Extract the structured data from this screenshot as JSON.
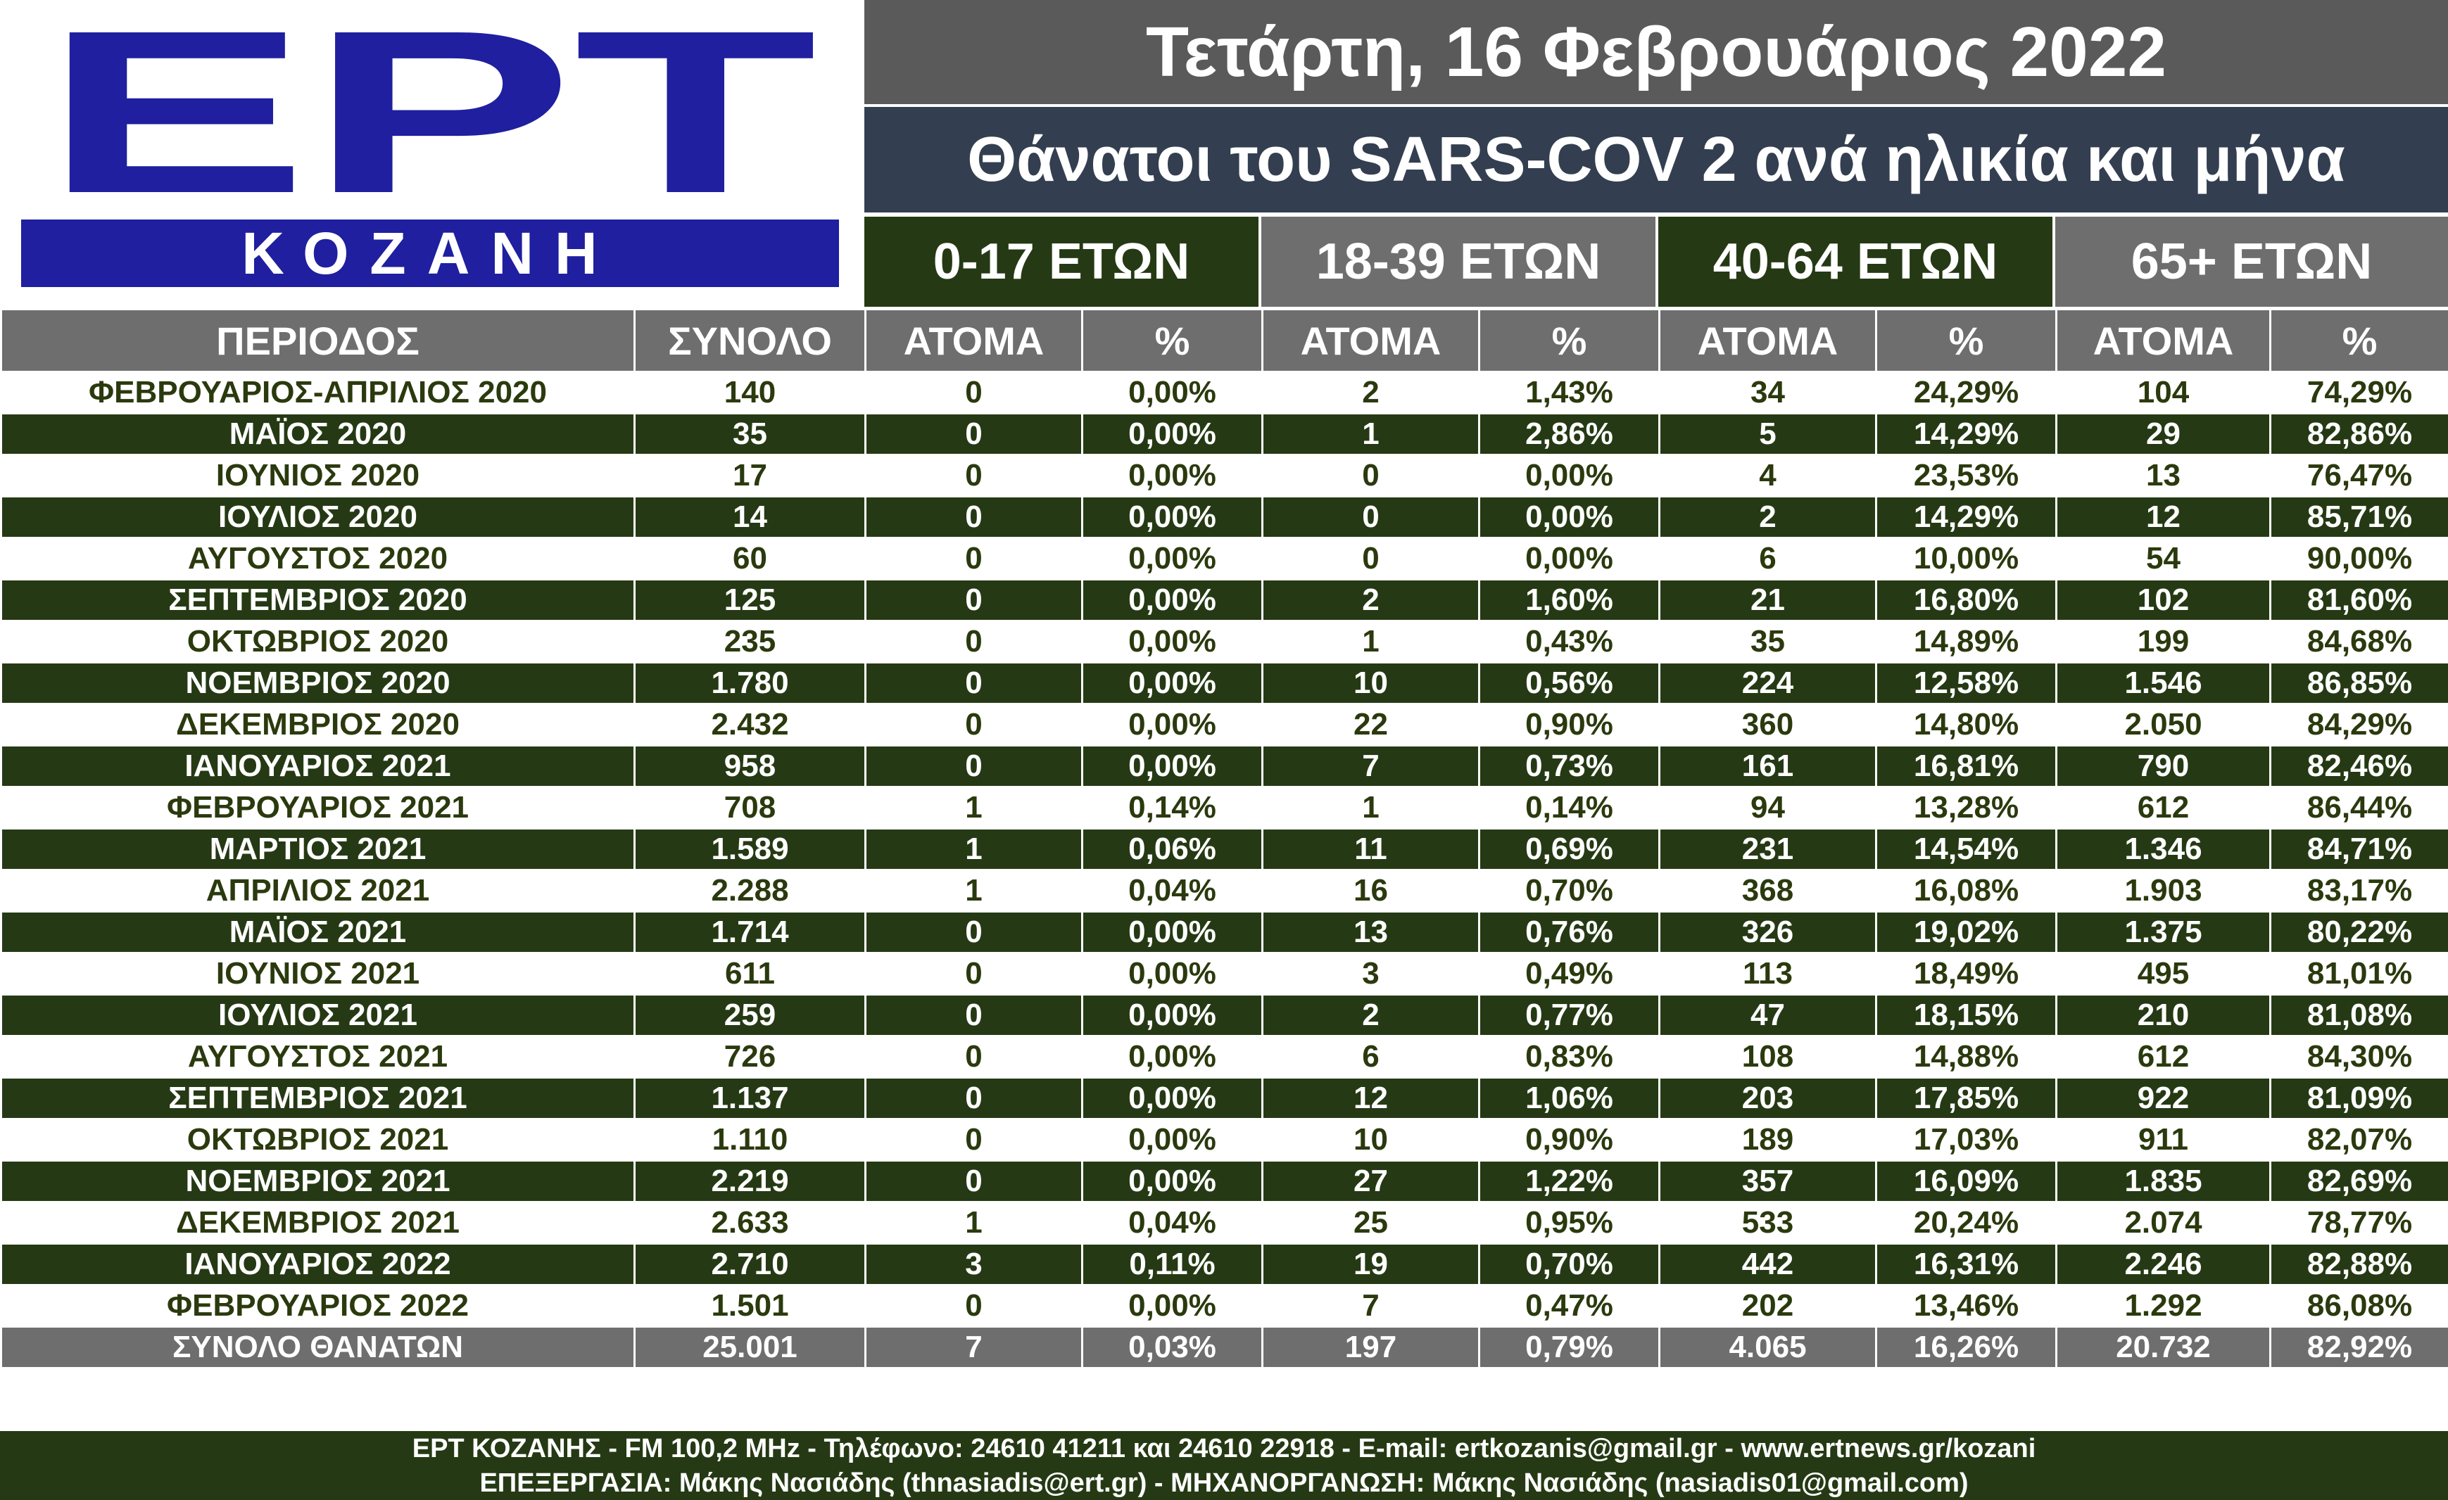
{
  "logo": {
    "letters": "ΕΡΤ",
    "city": "ΚΟΖΑΝΗ"
  },
  "header": {
    "date": "Τετάρτη, 16 Φεβρουάριος 2022",
    "title": "Θάνατοι του SARS-COV 2 ανά ηλικία και μήνα"
  },
  "age_groups": [
    "0-17 ΕΤΩΝ",
    "18-39 ΕΤΩΝ",
    "40-64 ΕΤΩΝ",
    "65+  ΕΤΩΝ"
  ],
  "columns": [
    "ΠΕΡΙΟΔΟΣ",
    "ΣΥΝΟΛΟ",
    "ΑΤΟΜΑ",
    "%",
    "ΑΤΟΜΑ",
    "%",
    "ΑΤΟΜΑ",
    "%",
    "ΑΤΟΜΑ",
    "%"
  ],
  "rows": [
    [
      "ΦΕΒΡΟΥΑΡΙΟΣ-ΑΠΡΙΛΙΟΣ 2020",
      "140",
      "0",
      "0,00%",
      "2",
      "1,43%",
      "34",
      "24,29%",
      "104",
      "74,29%"
    ],
    [
      "ΜΑΪΟΣ 2020",
      "35",
      "0",
      "0,00%",
      "1",
      "2,86%",
      "5",
      "14,29%",
      "29",
      "82,86%"
    ],
    [
      "ΙΟΥΝΙΟΣ 2020",
      "17",
      "0",
      "0,00%",
      "0",
      "0,00%",
      "4",
      "23,53%",
      "13",
      "76,47%"
    ],
    [
      "ΙΟΥΛΙΟΣ 2020",
      "14",
      "0",
      "0,00%",
      "0",
      "0,00%",
      "2",
      "14,29%",
      "12",
      "85,71%"
    ],
    [
      "ΑΥΓΟΥΣΤΟΣ 2020",
      "60",
      "0",
      "0,00%",
      "0",
      "0,00%",
      "6",
      "10,00%",
      "54",
      "90,00%"
    ],
    [
      "ΣΕΠΤΕΜΒΡΙΟΣ 2020",
      "125",
      "0",
      "0,00%",
      "2",
      "1,60%",
      "21",
      "16,80%",
      "102",
      "81,60%"
    ],
    [
      "ΟΚΤΩΒΡΙΟΣ 2020",
      "235",
      "0",
      "0,00%",
      "1",
      "0,43%",
      "35",
      "14,89%",
      "199",
      "84,68%"
    ],
    [
      "ΝΟΕΜΒΡΙΟΣ 2020",
      "1.780",
      "0",
      "0,00%",
      "10",
      "0,56%",
      "224",
      "12,58%",
      "1.546",
      "86,85%"
    ],
    [
      "ΔΕΚΕΜΒΡΙΟΣ 2020",
      "2.432",
      "0",
      "0,00%",
      "22",
      "0,90%",
      "360",
      "14,80%",
      "2.050",
      "84,29%"
    ],
    [
      "ΙΑΝΟΥΑΡΙΟΣ 2021",
      "958",
      "0",
      "0,00%",
      "7",
      "0,73%",
      "161",
      "16,81%",
      "790",
      "82,46%"
    ],
    [
      "ΦΕΒΡΟΥΑΡΙΟΣ 2021",
      "708",
      "1",
      "0,14%",
      "1",
      "0,14%",
      "94",
      "13,28%",
      "612",
      "86,44%"
    ],
    [
      "ΜΑΡΤΙΟΣ 2021",
      "1.589",
      "1",
      "0,06%",
      "11",
      "0,69%",
      "231",
      "14,54%",
      "1.346",
      "84,71%"
    ],
    [
      "ΑΠΡΙΛΙΟΣ 2021",
      "2.288",
      "1",
      "0,04%",
      "16",
      "0,70%",
      "368",
      "16,08%",
      "1.903",
      "83,17%"
    ],
    [
      "ΜΑΪΟΣ 2021",
      "1.714",
      "0",
      "0,00%",
      "13",
      "0,76%",
      "326",
      "19,02%",
      "1.375",
      "80,22%"
    ],
    [
      "ΙΟΥΝΙΟΣ 2021",
      "611",
      "0",
      "0,00%",
      "3",
      "0,49%",
      "113",
      "18,49%",
      "495",
      "81,01%"
    ],
    [
      "ΙΟΥΛΙΟΣ 2021",
      "259",
      "0",
      "0,00%",
      "2",
      "0,77%",
      "47",
      "18,15%",
      "210",
      "81,08%"
    ],
    [
      "ΑΥΓΟΥΣΤΟΣ 2021",
      "726",
      "0",
      "0,00%",
      "6",
      "0,83%",
      "108",
      "14,88%",
      "612",
      "84,30%"
    ],
    [
      "ΣΕΠΤΕΜΒΡΙΟΣ 2021",
      "1.137",
      "0",
      "0,00%",
      "12",
      "1,06%",
      "203",
      "17,85%",
      "922",
      "81,09%"
    ],
    [
      "ΟΚΤΩΒΡΙΟΣ 2021",
      "1.110",
      "0",
      "0,00%",
      "10",
      "0,90%",
      "189",
      "17,03%",
      "911",
      "82,07%"
    ],
    [
      "ΝΟΕΜΒΡΙΟΣ 2021",
      "2.219",
      "0",
      "0,00%",
      "27",
      "1,22%",
      "357",
      "16,09%",
      "1.835",
      "82,69%"
    ],
    [
      "ΔΕΚΕΜΒΡΙΟΣ 2021",
      "2.633",
      "1",
      "0,04%",
      "25",
      "0,95%",
      "533",
      "20,24%",
      "2.074",
      "78,77%"
    ],
    [
      "ΙΑΝΟΥΑΡΙΟΣ 2022",
      "2.710",
      "3",
      "0,11%",
      "19",
      "0,70%",
      "442",
      "16,31%",
      "2.246",
      "82,88%"
    ],
    [
      "ΦΕΒΡΟΥΑΡΙΟΣ 2022",
      "1.501",
      "0",
      "0,00%",
      "7",
      "0,47%",
      "202",
      "13,46%",
      "1.292",
      "86,08%"
    ]
  ],
  "total": [
    "ΣΥΝΟΛΟ ΘΑΝΑΤΩΝ",
    "25.001",
    "7",
    "0,03%",
    "197",
    "0,79%",
    "4.065",
    "16,26%",
    "20.732",
    "82,92%"
  ],
  "footer": {
    "line1": "ΕΡΤ ΚΟΖΑΝΗΣ - FM 100,2 MHz - Τηλέφωνο:  24610 41211 και 24610 22918 - E-mail: ertkozanis@gmail.gr - www.ertnews.gr/kozani",
    "line2": "ΕΠΕΞΕΡΓΑΣΙΑ: Μάκης Νασιάδης (thnasiadis@ert.gr) - ΜΗΧΑΝΟΡΓΑΝΩΣΗ: Μάκης Νασιάδης (nasiadis01@gmail.com)"
  },
  "colors": {
    "logo_blue": "#1f1fa0",
    "date_bar": "#5a5a5a",
    "title_bar": "#333f50",
    "header_grey": "#6e6e6e",
    "row_dark_green": "#253a14",
    "row_light_text": "#2b3a0e"
  }
}
